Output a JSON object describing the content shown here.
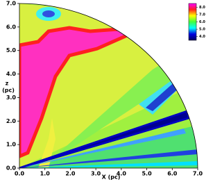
{
  "chart_data": {
    "type": "heatmap",
    "x_label": "X (pc)",
    "y_label": [
      "z",
      "(pc)"
    ],
    "xlim": [
      0,
      7
    ],
    "ylim": [
      0,
      7
    ],
    "xticks": [
      {
        "value": 0,
        "label": "0.0"
      },
      {
        "value": 1,
        "label": "1.0"
      },
      {
        "value": 2,
        "label": "2.0"
      },
      {
        "value": 3,
        "label": "3.0"
      },
      {
        "value": 4,
        "label": "4.0"
      },
      {
        "value": 5,
        "label": "5.0"
      },
      {
        "value": 6,
        "label": "6.0"
      },
      {
        "value": 7,
        "label": "7.0"
      }
    ],
    "yticks": [
      {
        "value": 0,
        "label": "0.0"
      },
      {
        "value": 1,
        "label": "1.0"
      },
      {
        "value": 2,
        "label": "2.0"
      },
      {
        "value": 3,
        "label": "3.0"
      },
      {
        "value": 4,
        "label": "4.0"
      },
      {
        "value": 5,
        "label": "5.0"
      },
      {
        "value": 6,
        "label": "6.0"
      },
      {
        "value": 7,
        "label": "7.0"
      }
    ],
    "colorbar": {
      "lim": [
        3.5,
        8.5
      ],
      "ticks": [
        {
          "value": 8,
          "label": "8.0"
        },
        {
          "value": 7,
          "label": "7.0"
        },
        {
          "value": 6,
          "label": "6.0"
        },
        {
          "value": 5,
          "label": "5.0"
        },
        {
          "value": 4,
          "label": "4.0"
        }
      ],
      "colors": [
        "#ff00ff",
        "#ff2020",
        "#ffff00",
        "#40ff40",
        "#00ffff",
        "#0000e0",
        "#000060"
      ]
    }
  }
}
